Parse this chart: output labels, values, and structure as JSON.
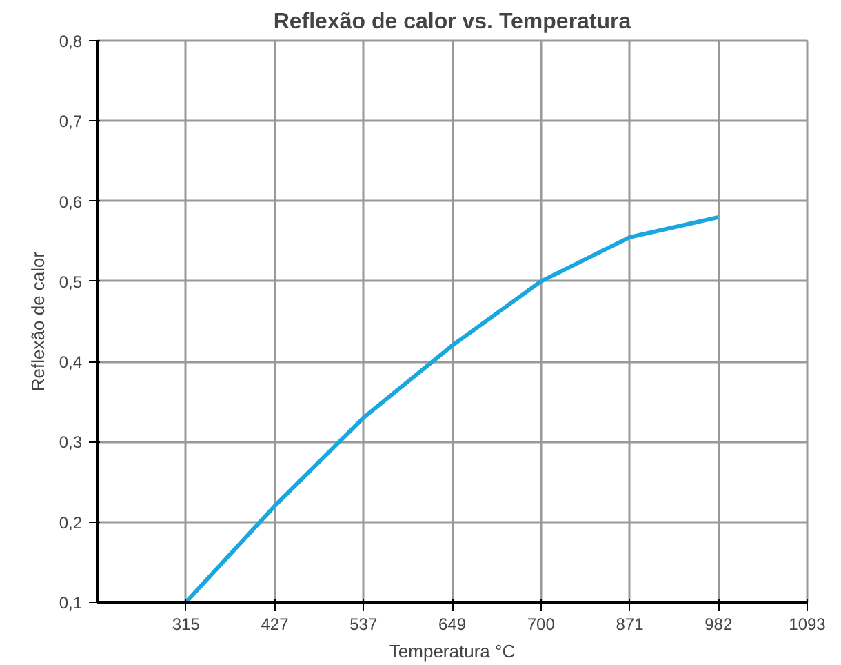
{
  "chart_data": {
    "type": "line",
    "title": "Reflexão de calor vs. Temperatura",
    "xlabel": "Temperatura °C",
    "ylabel": "Reflexão de calor",
    "categories": [
      null,
      "315",
      "427",
      "537",
      "649",
      "700",
      "871",
      "982",
      "1093"
    ],
    "series": [
      {
        "color": "#1aa7e0",
        "values": [
          null,
          0.1,
          0.22,
          0.33,
          0.42,
          0.5,
          0.555,
          0.58,
          null
        ]
      }
    ],
    "ylim": [
      0.1,
      0.8
    ],
    "yticks": [
      {
        "value": 0.1,
        "label": "0,1"
      },
      {
        "value": 0.2,
        "label": "0,2"
      },
      {
        "value": 0.3,
        "label": "0,3"
      },
      {
        "value": 0.4,
        "label": "0,4"
      },
      {
        "value": 0.5,
        "label": "0,5"
      },
      {
        "value": 0.6,
        "label": "0,6"
      },
      {
        "value": 0.7,
        "label": "0,7"
      },
      {
        "value": 0.8,
        "label": "0,8"
      }
    ],
    "grid": true,
    "marker": "none",
    "line_style": "solid"
  }
}
